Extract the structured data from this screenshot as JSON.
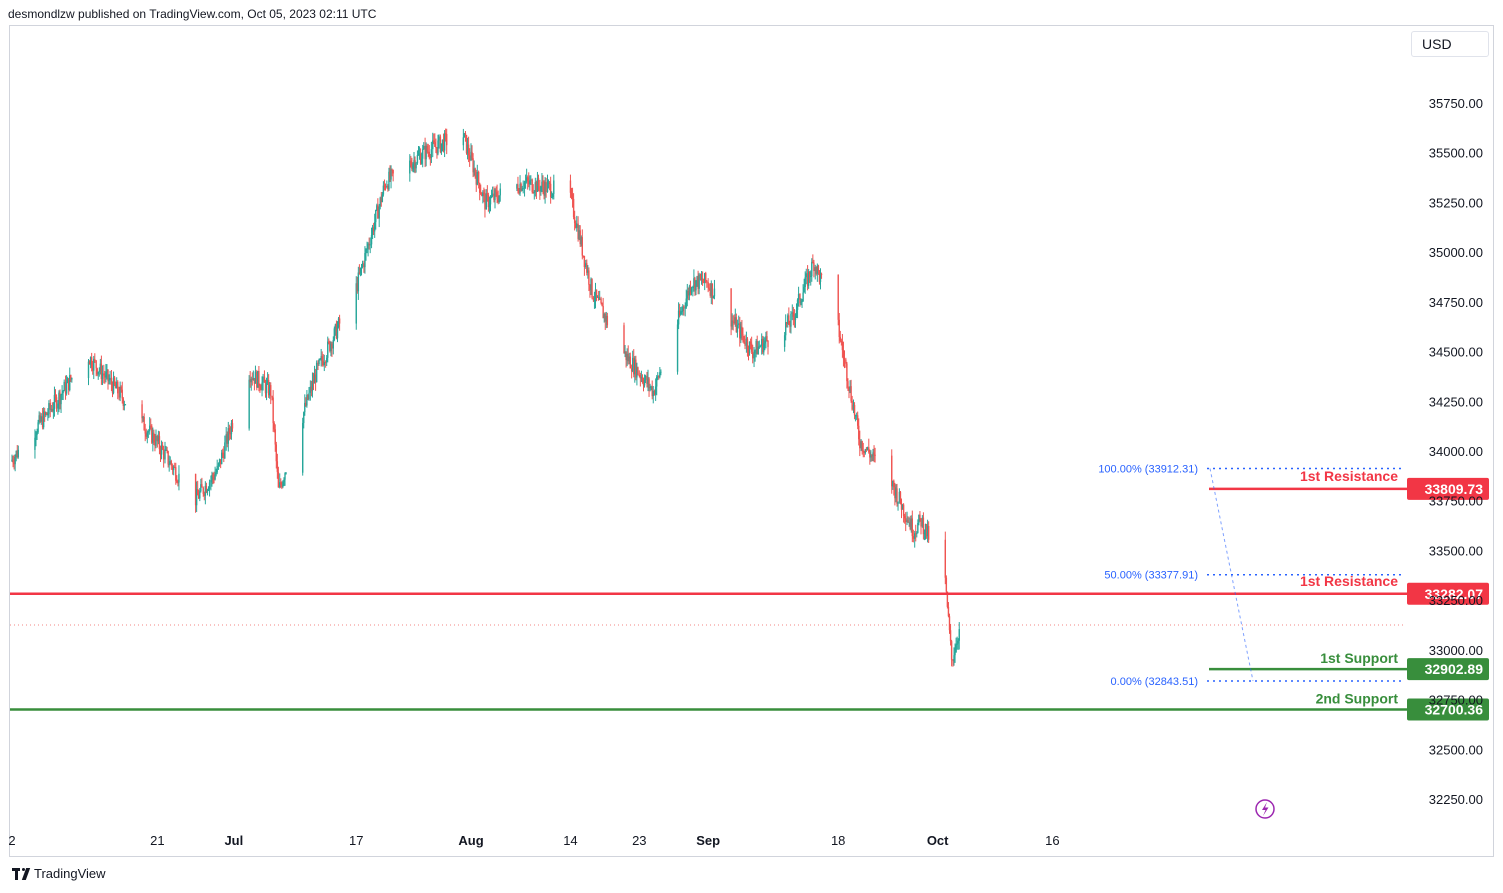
{
  "header": {
    "text": "desmondlzw published on TradingView.com, Oct 05, 2023 02:11 UTC"
  },
  "currency_button": {
    "label": "USD"
  },
  "footer": {
    "brand": "TradingView"
  },
  "colors": {
    "up": "#26a69a",
    "down": "#ef5350",
    "resistance": "#f23645",
    "support": "#388e3c",
    "fib": "#2962ff",
    "grid": "#ffffff",
    "axis_text": "#131722"
  },
  "icons": {
    "event_marker": "lightning-bolt-icon",
    "brand": "tradingview-logo-icon"
  },
  "chart_data": {
    "type": "candlestick",
    "x_tick_labels": [
      "2",
      "21",
      "Jul",
      "17",
      "Aug",
      "14",
      "23",
      "Sep",
      "18",
      "Oct",
      "16"
    ],
    "y_tick_labels": [
      "35750.00",
      "35500.00",
      "35250.00",
      "35000.00",
      "34750.00",
      "34500.00",
      "34250.00",
      "34000.00",
      "33750.00",
      "33500.00",
      "33250.00",
      "33000.00",
      "32750.00",
      "32500.00",
      "32250.00"
    ],
    "ylim": [
      32100,
      36050
    ],
    "price_series_approx": [
      {
        "date": "2023-06-02",
        "close": 33950
      },
      {
        "date": "2023-06-07",
        "close": 34200
      },
      {
        "date": "2023-06-12",
        "close": 34480
      },
      {
        "date": "2023-06-16",
        "close": 34300
      },
      {
        "date": "2023-06-21",
        "close": 34050
      },
      {
        "date": "2023-06-26",
        "close": 33750
      },
      {
        "date": "2023-06-29",
        "close": 33900
      },
      {
        "date": "2023-07-03",
        "close": 34400
      },
      {
        "date": "2023-07-06",
        "close": 34300
      },
      {
        "date": "2023-07-07",
        "close": 33800
      },
      {
        "date": "2023-07-12",
        "close": 34400
      },
      {
        "date": "2023-07-17",
        "close": 34800
      },
      {
        "date": "2023-07-21",
        "close": 35350
      },
      {
        "date": "2023-07-26",
        "close": 35500
      },
      {
        "date": "2023-07-31",
        "close": 35600
      },
      {
        "date": "2023-08-03",
        "close": 35250
      },
      {
        "date": "2023-08-08",
        "close": 35350
      },
      {
        "date": "2023-08-14",
        "close": 35300
      },
      {
        "date": "2023-08-17",
        "close": 34800
      },
      {
        "date": "2023-08-21",
        "close": 34500
      },
      {
        "date": "2023-08-25",
        "close": 34300
      },
      {
        "date": "2023-08-30",
        "close": 34850
      },
      {
        "date": "2023-09-01",
        "close": 34850
      },
      {
        "date": "2023-09-07",
        "close": 34500
      },
      {
        "date": "2023-09-12",
        "close": 34650
      },
      {
        "date": "2023-09-15",
        "close": 34950
      },
      {
        "date": "2023-09-18",
        "close": 34650
      },
      {
        "date": "2023-09-21",
        "close": 34050
      },
      {
        "date": "2023-09-25",
        "close": 33850
      },
      {
        "date": "2023-09-28",
        "close": 33600
      },
      {
        "date": "2023-09-29",
        "close": 33650
      },
      {
        "date": "2023-10-02",
        "close": 33400
      },
      {
        "date": "2023-10-03",
        "close": 32950
      },
      {
        "date": "2023-10-04",
        "close": 33100
      }
    ],
    "last_price": 33125,
    "levels": [
      {
        "label": "1st Resistance",
        "value": 33809.73,
        "value_label": "33809.73",
        "kind": "resistance",
        "span": "short"
      },
      {
        "label": "1st Resistance",
        "value": 33282.07,
        "value_label": "33282.07",
        "kind": "resistance",
        "span": "full"
      },
      {
        "label": "1st Support",
        "value": 32902.89,
        "value_label": "32902.89",
        "kind": "support",
        "span": "short"
      },
      {
        "label": "2nd Support",
        "value": 32700.36,
        "value_label": "32700.36",
        "kind": "support",
        "span": "full"
      }
    ],
    "fibonacci": [
      {
        "label": "100.00% (33912.31)",
        "value": 33912.31
      },
      {
        "label": "50.00% (33377.91)",
        "value": 33377.91
      },
      {
        "label": "0.00% (32843.51)",
        "value": 32843.51
      }
    ]
  }
}
